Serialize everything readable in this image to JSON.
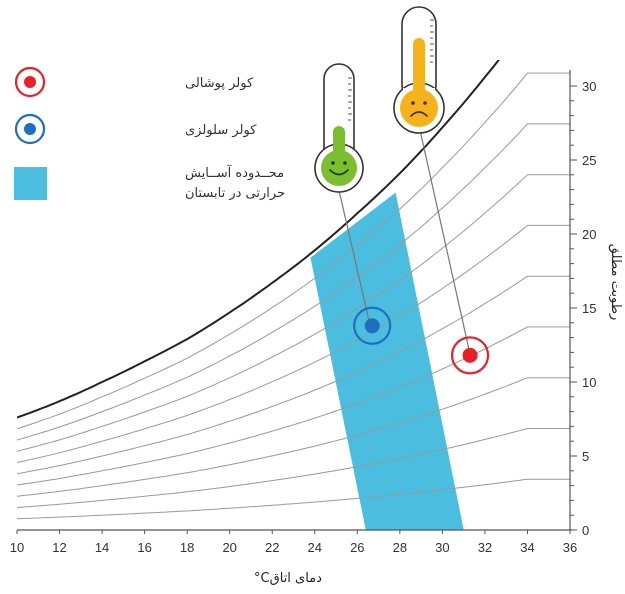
{
  "chart_data": {
    "type": "line",
    "title": "",
    "xlabel": "°Cدمای اتاق",
    "ylabel": "رطوبت مطلق",
    "xlim": [
      10,
      36
    ],
    "ylim": [
      0,
      31
    ],
    "x_ticks": [
      "10",
      "12",
      "14",
      "16",
      "18",
      "20",
      "22",
      "24",
      "26",
      "28",
      "30",
      "32",
      "34",
      "36"
    ],
    "y_ticks": [
      "0",
      "5",
      "10",
      "15",
      "20",
      "25",
      "30"
    ],
    "grid": false,
    "legend_position": "top-left",
    "legend": [
      {
        "label": "کولر پوشالی",
        "symbol": "ring",
        "color": "#e8202a"
      },
      {
        "label": "کولر سلولزی",
        "symbol": "ring",
        "color": "#1f6fc0"
      },
      {
        "label": "محدوده آسایش حرارتی در تابستان",
        "symbol": "square",
        "color": "#4bbee0",
        "lines": [
          "محــدوده آســایش",
          "حرارتی در تابستان"
        ]
      }
    ],
    "saturation_curve": {
      "x": [
        10,
        12,
        14,
        16,
        18,
        20,
        22,
        24,
        26,
        28,
        30,
        32,
        34
      ],
      "y": [
        7.6,
        8.7,
        10.0,
        11.4,
        12.9,
        14.7,
        16.7,
        18.9,
        21.4,
        24.1,
        27.2,
        30.6,
        34.3
      ]
    },
    "comfort_zone": {
      "polygon": [
        [
          23.8,
          18.4
        ],
        [
          26.4,
          0
        ],
        [
          31.0,
          0
        ],
        [
          27.8,
          22.8
        ]
      ]
    },
    "points": [
      {
        "name": "کولر سلولزی",
        "x": 26.7,
        "y": 13.8,
        "color": "#1f6fc0"
      },
      {
        "name": "کولر پوشالی",
        "x": 31.3,
        "y": 11.8,
        "color": "#e8202a"
      }
    ],
    "thermometers": [
      {
        "mood": "happy",
        "color": "#7cbf2e",
        "for": "کولر سلولزی"
      },
      {
        "mood": "sad",
        "color": "#f5b21a",
        "for": "کولر پوشالی"
      }
    ],
    "colors": {
      "curve": "#222222",
      "humidity_lines": "#999999",
      "axis": "#555555"
    }
  }
}
